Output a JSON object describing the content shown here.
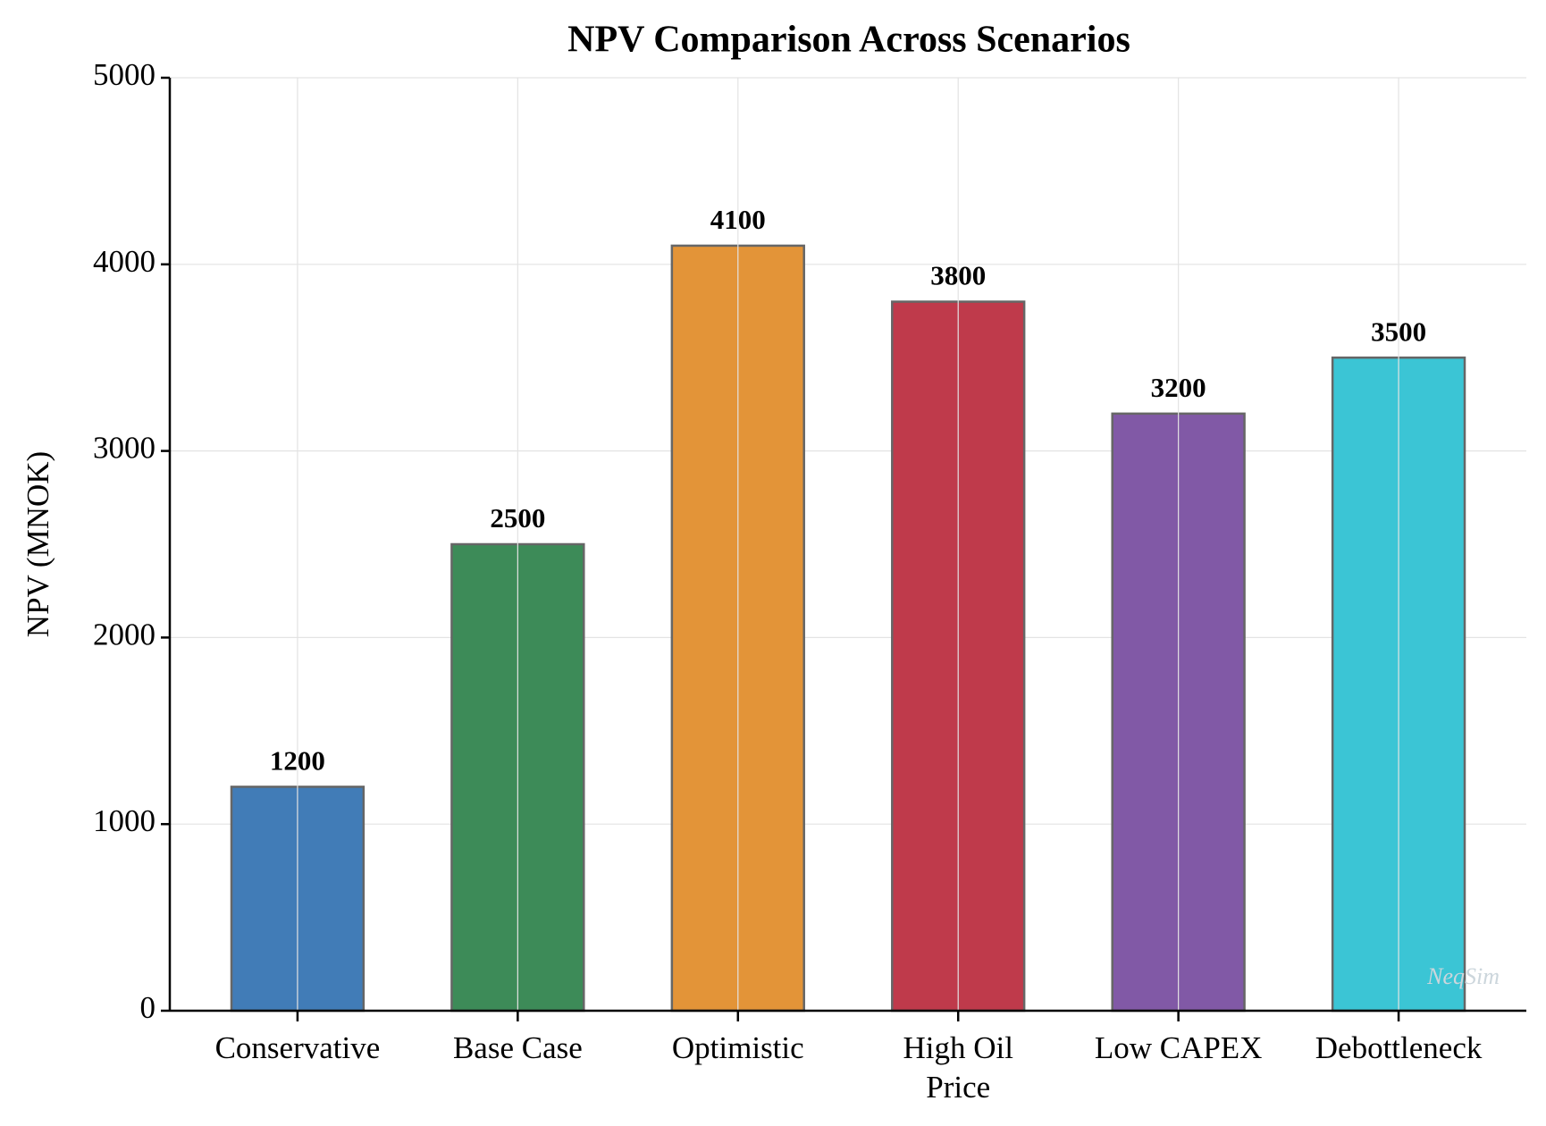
{
  "chart_data": {
    "type": "bar",
    "title": "NPV Comparison Across Scenarios",
    "y_label": "NPV (MNOK)",
    "categories": [
      "Conservative",
      "Base Case",
      "Optimistic",
      "High Oil\nPrice",
      "Low CAPEX",
      "Debottleneck"
    ],
    "values": [
      1200,
      2500,
      4100,
      3800,
      3200,
      3500
    ],
    "colors": [
      "#417cb7",
      "#3d8b58",
      "#e39438",
      "#bf3a4b",
      "#8159a6",
      "#3bc5d5"
    ],
    "ylim": [
      0,
      5000
    ],
    "yticks": [
      0,
      1000,
      2000,
      3000,
      4000,
      5000
    ],
    "grid": true,
    "watermark": "NeqSim"
  }
}
